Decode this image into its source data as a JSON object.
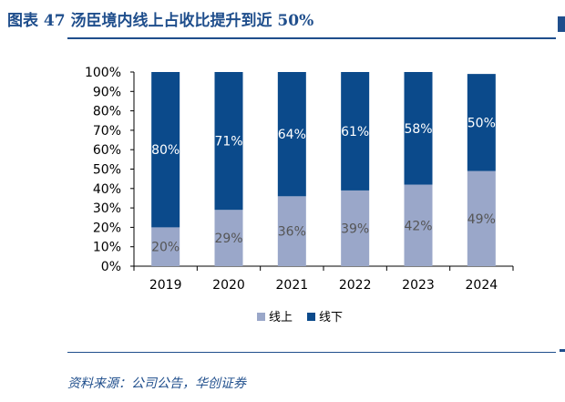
{
  "figure": {
    "title": "图表 47  汤臣境内线上占收比提升到近 50%",
    "source": "资料来源：公司公告，华创证券"
  },
  "colors": {
    "accent": "#1f4e8c",
    "online": "#9aa7c9",
    "offline": "#0b4a8b"
  },
  "chart_data": {
    "type": "bar",
    "stacked": true,
    "categories": [
      "2019",
      "2020",
      "2021",
      "2022",
      "2023",
      "2024"
    ],
    "series": [
      {
        "name": "线上",
        "values": [
          20,
          29,
          36,
          39,
          42,
          49
        ],
        "labels": [
          "20%",
          "29%",
          "36%",
          "39%",
          "42%",
          "49%"
        ]
      },
      {
        "name": "线下",
        "values": [
          80,
          71,
          64,
          61,
          58,
          50
        ],
        "labels": [
          "80%",
          "71%",
          "64%",
          "61%",
          "58%",
          "50%"
        ]
      }
    ],
    "ylim": [
      0,
      100
    ],
    "yticks": [
      "0%",
      "10%",
      "20%",
      "30%",
      "40%",
      "50%",
      "60%",
      "70%",
      "80%",
      "90%",
      "100%"
    ],
    "legend": "bottom-center",
    "grid": false
  }
}
